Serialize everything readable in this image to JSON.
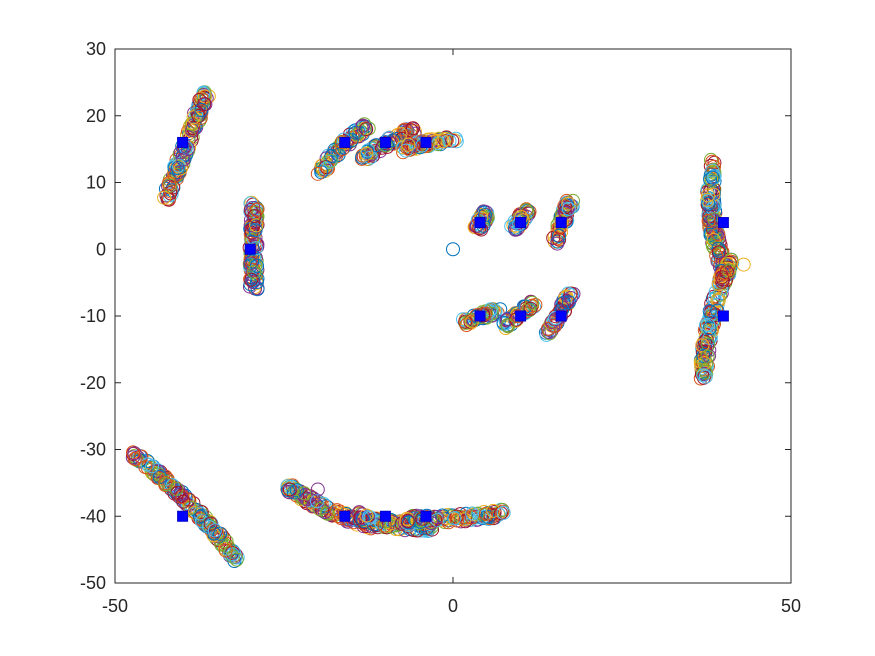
{
  "chart_data": {
    "type": "scatter",
    "title": "",
    "xlabel": "",
    "ylabel": "",
    "xlim": [
      -50,
      50
    ],
    "ylim": [
      -50,
      30
    ],
    "xticks": [
      -50,
      0,
      50
    ],
    "yticks": [
      30,
      20,
      10,
      0,
      -10,
      -20,
      -30,
      -40,
      -50
    ],
    "x_tick_labels": [
      "-50",
      "0",
      "50"
    ],
    "y_tick_labels": [
      "30",
      "20",
      "10",
      "0",
      "-10",
      "-20",
      "-30",
      "-40",
      "-50"
    ],
    "grid": false,
    "legend": "none",
    "marker_colors": [
      "#0072BD",
      "#D95319",
      "#EDB120",
      "#7E2F8E",
      "#77AC30",
      "#4DBEEE",
      "#A2142F"
    ],
    "centers_color": "#0000FF",
    "centers": [
      {
        "x": -40,
        "y": 16
      },
      {
        "x": -30,
        "y": 0
      },
      {
        "x": -16,
        "y": 16
      },
      {
        "x": -10,
        "y": 16
      },
      {
        "x": -4,
        "y": 16
      },
      {
        "x": 4,
        "y": 4
      },
      {
        "x": 10,
        "y": 4
      },
      {
        "x": 16,
        "y": 4
      },
      {
        "x": 4,
        "y": -10
      },
      {
        "x": 10,
        "y": -10
      },
      {
        "x": 16,
        "y": -10
      },
      {
        "x": 40,
        "y": 4
      },
      {
        "x": 40,
        "y": -10
      },
      {
        "x": -40,
        "y": -40
      },
      {
        "x": -16,
        "y": -40
      },
      {
        "x": -10,
        "y": -40
      },
      {
        "x": -4,
        "y": -40
      }
    ],
    "clusters": [
      {
        "x0": -42.5,
        "y0": 7.5,
        "x1": -36.5,
        "y1": 23.5,
        "bend": 0,
        "width": 0.6
      },
      {
        "x0": -29.5,
        "y0": -6,
        "x1": -29.5,
        "y1": 7,
        "bend": 0,
        "width": 0.6
      },
      {
        "x0": -19.5,
        "y0": 11.5,
        "x1": -12.5,
        "y1": 18.5,
        "bend": 0.6,
        "width": 0.6
      },
      {
        "x0": -13.5,
        "y0": 13.5,
        "x1": -5.5,
        "y1": 18,
        "bend": 0.3,
        "width": 0.6
      },
      {
        "x0": -7.5,
        "y0": 15,
        "x1": 0.5,
        "y1": 16.5,
        "bend": 0.2,
        "width": 0.5
      },
      {
        "x0": 3.5,
        "y0": 3,
        "x1": 5,
        "y1": 5.5,
        "bend": 0,
        "width": 0.6
      },
      {
        "x0": 9,
        "y0": 3,
        "x1": 11,
        "y1": 6,
        "bend": 0,
        "width": 0.6
      },
      {
        "x0": 15,
        "y0": 1,
        "x1": 17.5,
        "y1": 7.5,
        "bend": 0,
        "width": 0.6
      },
      {
        "x0": 1.5,
        "y0": -11,
        "x1": 7,
        "y1": -9,
        "bend": 0,
        "width": 0.5
      },
      {
        "x0": 7.5,
        "y0": -11.5,
        "x1": 12,
        "y1": -8,
        "bend": 0,
        "width": 0.5
      },
      {
        "x0": 14,
        "y0": -13,
        "x1": 17.5,
        "y1": -6.5,
        "bend": 0,
        "width": 0.5
      },
      {
        "x0": 38.5,
        "y0": 13.5,
        "x1": 40.5,
        "y1": -4,
        "bend": -1.2,
        "width": 0.6
      },
      {
        "x0": 41,
        "y0": -1.5,
        "x1": 37,
        "y1": -19.5,
        "bend": -0.8,
        "width": 0.6
      },
      {
        "x0": -47.5,
        "y0": -30.5,
        "x1": -32,
        "y1": -46.5,
        "bend": 0.8,
        "width": 0.5
      },
      {
        "x0": -24.5,
        "y0": -35.5,
        "x1": -11,
        "y1": -41.5,
        "bend": -0.8,
        "width": 0.6
      },
      {
        "x0": -14,
        "y0": -40,
        "x1": -3,
        "y1": -41.5,
        "bend": -0.5,
        "width": 0.7
      },
      {
        "x0": -7,
        "y0": -40.5,
        "x1": 7.5,
        "y1": -39.5,
        "bend": -0.3,
        "width": 0.6
      }
    ],
    "outliers": [
      {
        "x": 0,
        "y": 0
      },
      {
        "x": -20,
        "y": 11.3
      },
      {
        "x": 43,
        "y": -2.3
      },
      {
        "x": -20,
        "y": -36
      },
      {
        "x": -32,
        "y": -46.5
      },
      {
        "x": 7.5,
        "y": -39.5
      }
    ]
  }
}
